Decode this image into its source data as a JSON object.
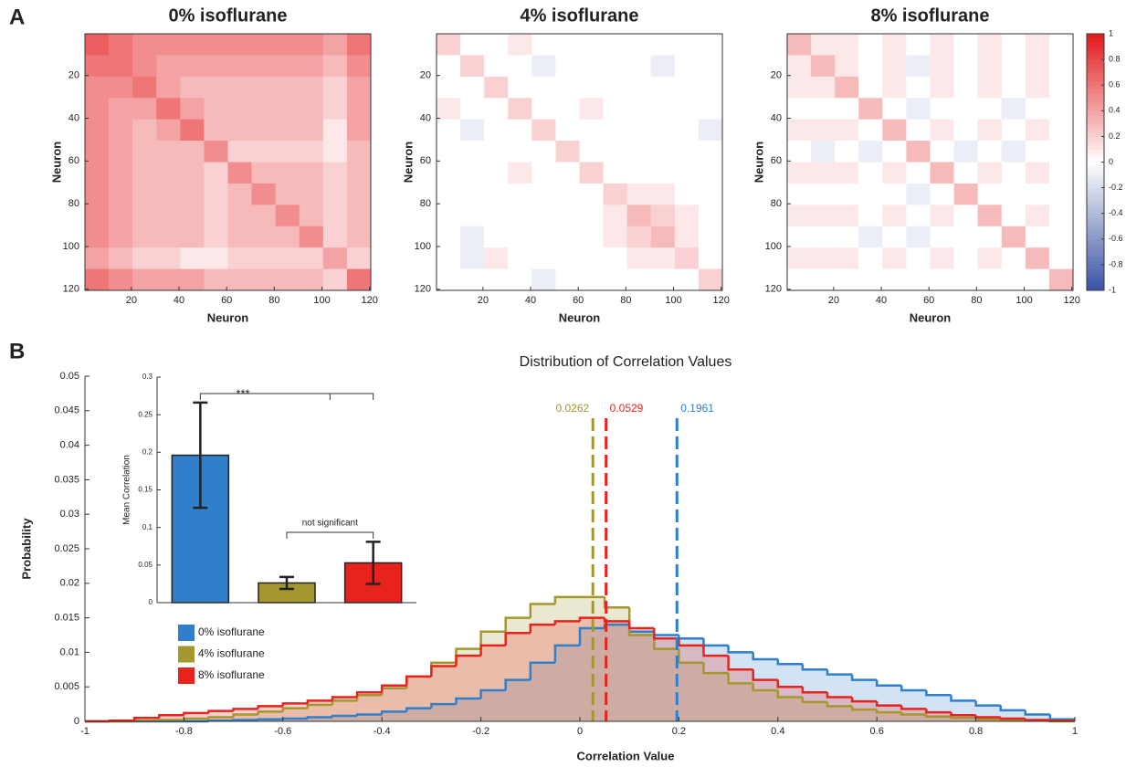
{
  "panels": [
    "A",
    "B"
  ],
  "chart_data": [
    {
      "type": "heatmap",
      "title": "0% isoflurane",
      "xlabel": "Neuron",
      "ylabel": "Neuron",
      "xlim": [
        0.5,
        120.5
      ],
      "ylim": [
        120.5,
        0.5
      ],
      "xticks": [
        20,
        40,
        60,
        80,
        100,
        120
      ],
      "yticks": [
        20,
        40,
        60,
        80,
        100,
        120
      ],
      "clim": [
        -1,
        1
      ],
      "colormap": [
        "#3953a4",
        "#ffffff",
        "#e31a1c"
      ],
      "matrix": [
        [
          0.7,
          0.6,
          0.5,
          0.5,
          0.5,
          0.5,
          0.5,
          0.5,
          0.5,
          0.5,
          0.4,
          0.6
        ],
        [
          0.6,
          0.6,
          0.5,
          0.4,
          0.4,
          0.4,
          0.4,
          0.4,
          0.4,
          0.4,
          0.3,
          0.5
        ],
        [
          0.5,
          0.5,
          0.6,
          0.4,
          0.3,
          0.3,
          0.3,
          0.3,
          0.3,
          0.3,
          0.2,
          0.4
        ],
        [
          0.5,
          0.4,
          0.4,
          0.6,
          0.4,
          0.3,
          0.3,
          0.3,
          0.3,
          0.3,
          0.2,
          0.4
        ],
        [
          0.5,
          0.4,
          0.3,
          0.4,
          0.6,
          0.3,
          0.3,
          0.3,
          0.3,
          0.3,
          0.1,
          0.4
        ],
        [
          0.5,
          0.4,
          0.3,
          0.3,
          0.3,
          0.5,
          0.2,
          0.2,
          0.2,
          0.2,
          0.1,
          0.3
        ],
        [
          0.5,
          0.4,
          0.3,
          0.3,
          0.3,
          0.2,
          0.5,
          0.3,
          0.3,
          0.3,
          0.2,
          0.3
        ],
        [
          0.5,
          0.4,
          0.3,
          0.3,
          0.3,
          0.2,
          0.3,
          0.5,
          0.3,
          0.3,
          0.2,
          0.3
        ],
        [
          0.5,
          0.4,
          0.3,
          0.3,
          0.3,
          0.2,
          0.3,
          0.3,
          0.5,
          0.3,
          0.2,
          0.3
        ],
        [
          0.5,
          0.4,
          0.3,
          0.3,
          0.3,
          0.2,
          0.3,
          0.3,
          0.3,
          0.5,
          0.2,
          0.3
        ],
        [
          0.4,
          0.3,
          0.2,
          0.2,
          0.1,
          0.1,
          0.2,
          0.2,
          0.2,
          0.2,
          0.4,
          0.2
        ],
        [
          0.6,
          0.5,
          0.4,
          0.4,
          0.4,
          0.3,
          0.3,
          0.3,
          0.3,
          0.3,
          0.2,
          0.6
        ]
      ]
    },
    {
      "type": "heatmap",
      "title": "4% isoflurane",
      "xlabel": "Neuron",
      "ylabel": "Neuron",
      "xlim": [
        0.5,
        120.5
      ],
      "ylim": [
        120.5,
        0.5
      ],
      "xticks": [
        20,
        40,
        60,
        80,
        100,
        120
      ],
      "yticks": [
        20,
        40,
        60,
        80,
        100,
        120
      ],
      "clim": [
        -1,
        1
      ],
      "colormap": [
        "#3953a4",
        "#ffffff",
        "#e31a1c"
      ],
      "matrix": [
        [
          0.2,
          0,
          0,
          0.1,
          0,
          0,
          0,
          0,
          0,
          0,
          0,
          0
        ],
        [
          0,
          0.2,
          0,
          0,
          -0.1,
          0,
          0,
          0,
          0,
          -0.1,
          0,
          0
        ],
        [
          0,
          0,
          0.2,
          0,
          0,
          0,
          0,
          0,
          0,
          0,
          0,
          0
        ],
        [
          0.1,
          0,
          0,
          0.2,
          0,
          0,
          0.1,
          0,
          0,
          0,
          0,
          0
        ],
        [
          0,
          -0.1,
          0,
          0,
          0.2,
          0,
          0,
          0,
          0,
          0,
          0,
          -0.1
        ],
        [
          0,
          0,
          0,
          0,
          0,
          0.2,
          0,
          0,
          0,
          0,
          0,
          0
        ],
        [
          0,
          0,
          0,
          0.1,
          0,
          0,
          0.2,
          0,
          0,
          0,
          0,
          0
        ],
        [
          0,
          0,
          0,
          0,
          0,
          0,
          0,
          0.2,
          0.1,
          0.1,
          0,
          0
        ],
        [
          0,
          0,
          0,
          0,
          0,
          0,
          0,
          0.1,
          0.3,
          0.2,
          0.1,
          0
        ],
        [
          0,
          -0.1,
          0,
          0,
          0,
          0,
          0,
          0.1,
          0.2,
          0.3,
          0.1,
          0
        ],
        [
          0,
          -0.1,
          0.1,
          0,
          0,
          0,
          0,
          0,
          0.1,
          0.1,
          0.2,
          0
        ],
        [
          0,
          0,
          0,
          0,
          -0.1,
          0,
          0,
          0,
          0,
          0,
          0,
          0.2
        ]
      ]
    },
    {
      "type": "heatmap",
      "title": "8% isoflurane",
      "xlabel": "Neuron",
      "ylabel": "Neuron",
      "xlim": [
        0.5,
        120.5
      ],
      "ylim": [
        120.5,
        0.5
      ],
      "xticks": [
        20,
        40,
        60,
        80,
        100,
        120
      ],
      "yticks": [
        20,
        40,
        60,
        80,
        100,
        120
      ],
      "clim": [
        -1,
        1
      ],
      "colormap": [
        "#3953a4",
        "#ffffff",
        "#e31a1c"
      ],
      "colorbar_ticks": [
        -1,
        -0.8,
        -0.6,
        -0.4,
        -0.2,
        0,
        0.2,
        0.4,
        0.6,
        0.8,
        1
      ],
      "matrix": [
        [
          0.3,
          0.1,
          0.1,
          0,
          0.1,
          0,
          0.1,
          0,
          0.1,
          0,
          0.1,
          0
        ],
        [
          0.1,
          0.3,
          0.1,
          0,
          0.1,
          -0.1,
          0.1,
          0,
          0.1,
          0,
          0.1,
          0
        ],
        [
          0.1,
          0.1,
          0.3,
          0,
          0.1,
          0,
          0.1,
          0,
          0.1,
          0,
          0.1,
          0
        ],
        [
          0,
          0,
          0,
          0.3,
          0,
          -0.1,
          0,
          0,
          0,
          -0.1,
          0,
          0
        ],
        [
          0.1,
          0.1,
          0.1,
          0,
          0.3,
          0,
          0.1,
          0,
          0.1,
          0,
          0.1,
          0
        ],
        [
          0,
          -0.1,
          0,
          -0.1,
          0,
          0.3,
          0,
          -0.1,
          0,
          -0.1,
          0,
          0
        ],
        [
          0.1,
          0.1,
          0.1,
          0,
          0.1,
          0,
          0.3,
          0,
          0.1,
          0,
          0.1,
          0
        ],
        [
          0,
          0,
          0,
          0,
          0,
          -0.1,
          0,
          0.3,
          0,
          0,
          0,
          0
        ],
        [
          0.1,
          0.1,
          0.1,
          0,
          0.1,
          0,
          0.1,
          0,
          0.3,
          0,
          0.1,
          0
        ],
        [
          0,
          0,
          0,
          -0.1,
          0,
          -0.1,
          0,
          0,
          0,
          0.3,
          0,
          0
        ],
        [
          0.1,
          0.1,
          0.1,
          0,
          0.1,
          0,
          0.1,
          0,
          0.1,
          0,
          0.3,
          0
        ],
        [
          0,
          0,
          0,
          0,
          0,
          0,
          0,
          0,
          0,
          0,
          0,
          0.3
        ]
      ]
    },
    {
      "type": "histogram",
      "title": "Distribution of Correlation Values",
      "xlabel": "Correlation Value",
      "ylabel": "Probability",
      "xlim": [
        -1,
        1
      ],
      "ylim": [
        0,
        0.05
      ],
      "xticks": [
        -1,
        -0.8,
        -0.6,
        -0.4,
        -0.2,
        0,
        0.2,
        0.4,
        0.6,
        0.8,
        1
      ],
      "yticks": [
        0,
        0.005,
        0.01,
        0.015,
        0.02,
        0.025,
        0.03,
        0.035,
        0.04,
        0.045,
        0.05
      ],
      "legend": "left",
      "bins": [
        -1,
        -0.95,
        -0.9,
        -0.85,
        -0.8,
        -0.75,
        -0.7,
        -0.65,
        -0.6,
        -0.55,
        -0.5,
        -0.45,
        -0.4,
        -0.35,
        -0.3,
        -0.25,
        -0.2,
        -0.15,
        -0.1,
        -0.05,
        0,
        0.05,
        0.1,
        0.15,
        0.2,
        0.25,
        0.3,
        0.35,
        0.4,
        0.45,
        0.5,
        0.55,
        0.6,
        0.65,
        0.7,
        0.75,
        0.8,
        0.85,
        0.9,
        0.95,
        1
      ],
      "series": [
        {
          "name": "0% isoflurane",
          "color": "#2f7fcb",
          "mean": 0.1961,
          "values": [
            0,
            0,
            0,
            0,
            0,
            0.0001,
            0.0002,
            0.0003,
            0.0004,
            0.0006,
            0.0008,
            0.001,
            0.0014,
            0.0019,
            0.0025,
            0.0033,
            0.0045,
            0.006,
            0.0085,
            0.011,
            0.0135,
            0.014,
            0.013,
            0.0125,
            0.012,
            0.011,
            0.01,
            0.009,
            0.0083,
            0.0075,
            0.0068,
            0.006,
            0.0052,
            0.0045,
            0.0038,
            0.003,
            0.0023,
            0.0016,
            0.001,
            0.0003
          ]
        },
        {
          "name": "4% isoflurane",
          "color": "#a3972e",
          "mean": 0.0262,
          "values": [
            0,
            0,
            0.0001,
            0.0002,
            0.0004,
            0.0006,
            0.001,
            0.0014,
            0.0019,
            0.0024,
            0.003,
            0.0038,
            0.0048,
            0.0065,
            0.0085,
            0.0105,
            0.013,
            0.015,
            0.017,
            0.018,
            0.018,
            0.0165,
            0.0125,
            0.0105,
            0.0085,
            0.007,
            0.0055,
            0.0045,
            0.0035,
            0.0028,
            0.0022,
            0.0017,
            0.0013,
            0.001,
            0.0007,
            0.0005,
            0.0003,
            0.0002,
            0.0001,
            0
          ]
        },
        {
          "name": "8% isoflurane",
          "color": "#e8231e",
          "mean": 0.0529,
          "values": [
            0,
            0.0001,
            0.0005,
            0.0009,
            0.0012,
            0.0015,
            0.0018,
            0.0022,
            0.0026,
            0.003,
            0.0035,
            0.0042,
            0.0052,
            0.0065,
            0.008,
            0.0095,
            0.011,
            0.0128,
            0.014,
            0.0145,
            0.015,
            0.0145,
            0.0135,
            0.012,
            0.011,
            0.0095,
            0.0075,
            0.006,
            0.005,
            0.0042,
            0.0035,
            0.0029,
            0.0023,
            0.0018,
            0.0013,
            0.0009,
            0.0006,
            0.0004,
            0.0002,
            0.0001
          ]
        }
      ]
    },
    {
      "type": "bar",
      "ylabel": "Mean Correlation",
      "ylim": [
        0,
        0.3
      ],
      "yticks": [
        0,
        0.05,
        0.1,
        0.15,
        0.2,
        0.25,
        0.3
      ],
      "values": [
        0.1961,
        0.0262,
        0.0529
      ],
      "errors": [
        0.07,
        0.008,
        0.028
      ],
      "colors": [
        "#2f7fcb",
        "#a3972e",
        "#e8231e"
      ],
      "annotations": [
        "***",
        "not significant"
      ]
    }
  ]
}
